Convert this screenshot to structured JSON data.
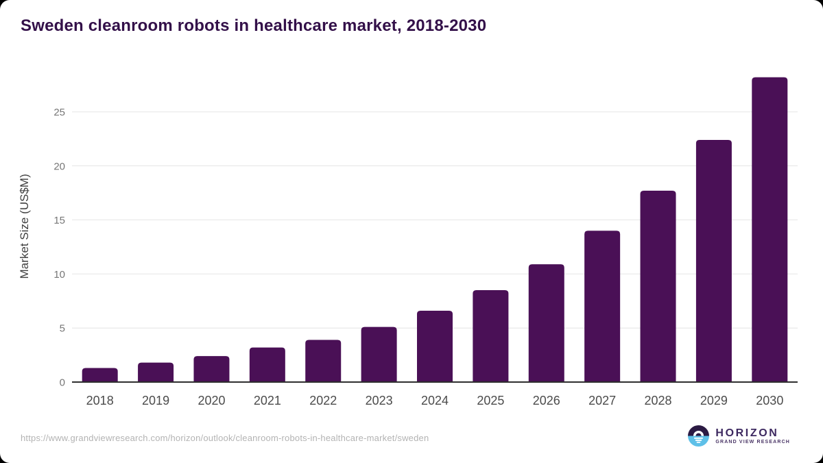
{
  "header": {
    "title": "Sweden cleanroom robots in healthcare market, 2018-2030",
    "title_color": "#331049"
  },
  "chart_data": {
    "type": "bar",
    "title": "Sweden cleanroom robots in healthcare market, 2018-2030",
    "categories": [
      "2018",
      "2019",
      "2020",
      "2021",
      "2022",
      "2023",
      "2024",
      "2025",
      "2026",
      "2027",
      "2028",
      "2029",
      "2030"
    ],
    "values": [
      1.3,
      1.8,
      2.4,
      3.2,
      3.9,
      5.1,
      6.6,
      8.5,
      10.9,
      14.0,
      17.7,
      22.4,
      28.2
    ],
    "xlabel": "",
    "ylabel": "Market Size (US$M)",
    "ylim": [
      0,
      28.5
    ],
    "yticks": [
      0,
      5,
      10,
      15,
      20,
      25
    ],
    "bar_color": "#4a1056",
    "grid": "horizontal-light",
    "legend": "none",
    "colors": {
      "gridline": "#e4e4e4",
      "baseline": "#2e2e2e",
      "tick_label": "#767676",
      "x_label": "#4b4b4b",
      "ylabel_text": "#3f3f3f"
    }
  },
  "footer": {
    "source_url": "https://www.grandviewresearch.com/horizon/outlook/cleanroom-robots-in-healthcare-market/sweden",
    "logo": {
      "brand": "HORIZON",
      "subbrand": "GRAND VIEW RESEARCH",
      "dark_color": "#2b1a43",
      "light_color": "#5ec0e8",
      "glyph_color": "#ffffff"
    }
  }
}
